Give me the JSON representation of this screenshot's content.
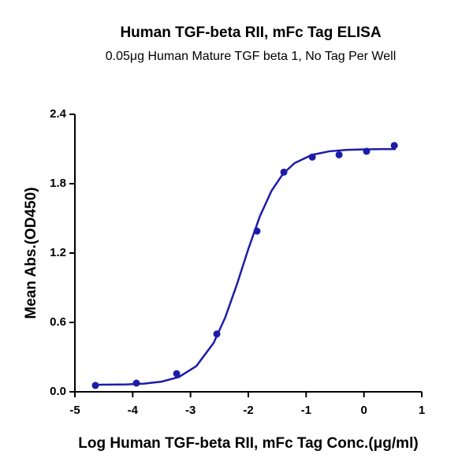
{
  "chart_data": {
    "type": "scatter",
    "title": "Human TGF-beta RII, mFc Tag ELISA",
    "subtitle": "0.05μg Human Mature TGF beta 1, No Tag Per Well",
    "xlabel": "Log Human TGF-beta RII, mFc Tag Conc.(μg/ml)",
    "ylabel": "Mean Abs.(OD450)",
    "xlim": [
      -5,
      1
    ],
    "xticks": [
      -5,
      -4,
      -3,
      -2,
      -1,
      0,
      1
    ],
    "ylim": [
      0,
      2.4
    ],
    "yticks": [
      {
        "value": 0,
        "label": "0.0"
      },
      0.6,
      1.2,
      1.8,
      2.4
    ],
    "series": [
      {
        "type": "scatter",
        "color": "#1c1ca8",
        "x": [
          -4.645,
          -3.936,
          -3.24,
          -2.545,
          -1.85,
          -1.385,
          -0.894,
          -0.43,
          0.045,
          0.525
        ],
        "values": [
          0.055,
          0.075,
          0.157,
          0.5,
          1.39,
          1.9,
          2.03,
          2.05,
          2.08,
          2.13
        ]
      },
      {
        "type": "line",
        "color": "#1c1ca8",
        "x": [
          -4.7,
          -4.4,
          -4.1,
          -3.8,
          -3.5,
          -3.2,
          -2.9,
          -2.6,
          -2.4,
          -2.2,
          -2.0,
          -1.8,
          -1.6,
          -1.4,
          -1.2,
          -0.9,
          -0.6,
          -0.3,
          0,
          0.3,
          0.55
        ],
        "values": [
          0.061,
          0.062,
          0.064,
          0.071,
          0.088,
          0.128,
          0.222,
          0.423,
          0.642,
          0.925,
          1.235,
          1.518,
          1.737,
          1.886,
          1.978,
          2.049,
          2.08,
          2.092,
          2.097,
          2.099,
          2.099
        ]
      }
    ]
  }
}
